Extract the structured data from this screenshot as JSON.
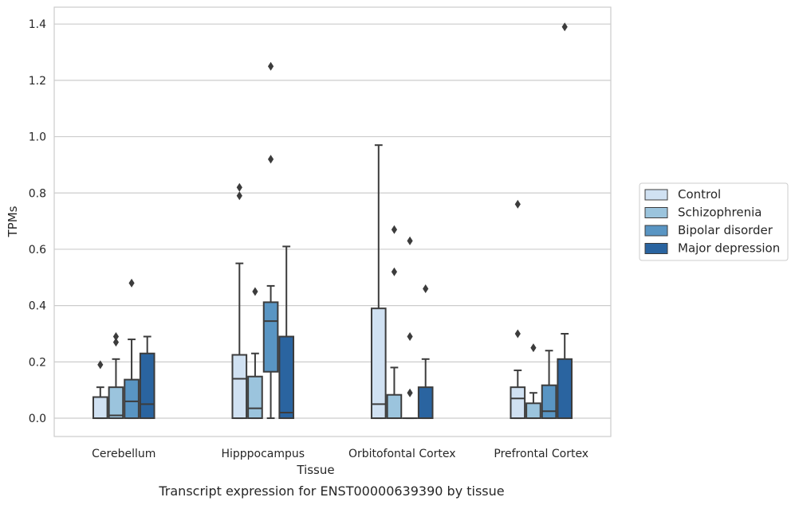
{
  "chart_data": {
    "type": "boxplot",
    "caption": "Transcript expression for ENST00000639390 by tissue",
    "xlabel": "Tissue",
    "ylabel": "TPMs",
    "ylim": [
      -0.065,
      1.46
    ],
    "yticks": [
      0.0,
      0.2,
      0.4,
      0.6,
      0.8,
      1.0,
      1.2,
      1.4
    ],
    "ytick_labels": [
      "0.0",
      "0.2",
      "0.4",
      "0.6",
      "0.8",
      "1.0",
      "1.2",
      "1.4"
    ],
    "grid": "horizontal",
    "legend_position": "right",
    "categories": [
      "Cerebellum",
      "Hipppocampus",
      "Orbitofontal Cortex",
      "Prefrontal Cortex"
    ],
    "series": [
      {
        "name": "Control",
        "color": "#d0e1f2",
        "boxes": [
          {
            "whisker_low": 0.0,
            "q1": 0.0,
            "median": 0.0,
            "q3": 0.075,
            "whisker_high": 0.11,
            "outliers": [
              0.19
            ]
          },
          {
            "whisker_low": 0.0,
            "q1": 0.0,
            "median": 0.14,
            "q3": 0.225,
            "whisker_high": 0.55,
            "outliers": [
              0.79,
              0.82
            ]
          },
          {
            "whisker_low": 0.0,
            "q1": 0.0,
            "median": 0.05,
            "q3": 0.39,
            "whisker_high": 0.97,
            "outliers": []
          },
          {
            "whisker_low": 0.0,
            "q1": 0.0,
            "median": 0.07,
            "q3": 0.11,
            "whisker_high": 0.17,
            "outliers": [
              0.3,
              0.76
            ]
          }
        ]
      },
      {
        "name": "Schizophrenia",
        "color": "#9bc4dd",
        "boxes": [
          {
            "whisker_low": 0.0,
            "q1": 0.0,
            "median": 0.01,
            "q3": 0.11,
            "whisker_high": 0.21,
            "outliers": [
              0.27,
              0.29
            ]
          },
          {
            "whisker_low": 0.0,
            "q1": 0.0,
            "median": 0.035,
            "q3": 0.148,
            "whisker_high": 0.23,
            "outliers": [
              0.45
            ]
          },
          {
            "whisker_low": 0.0,
            "q1": 0.0,
            "median": 0.0,
            "q3": 0.083,
            "whisker_high": 0.18,
            "outliers": [
              0.52,
              0.67
            ]
          },
          {
            "whisker_low": 0.0,
            "q1": 0.0,
            "median": 0.0,
            "q3": 0.053,
            "whisker_high": 0.09,
            "outliers": [
              0.25
            ]
          }
        ]
      },
      {
        "name": "Bipolar disorder",
        "color": "#5995c3",
        "boxes": [
          {
            "whisker_low": 0.0,
            "q1": 0.0,
            "median": 0.06,
            "q3": 0.137,
            "whisker_high": 0.28,
            "outliers": [
              0.48
            ]
          },
          {
            "whisker_low": 0.0,
            "q1": 0.165,
            "median": 0.345,
            "q3": 0.412,
            "whisker_high": 0.47,
            "outliers": [
              0.92,
              1.25
            ]
          },
          {
            "whisker_low": 0.0,
            "q1": 0.0,
            "median": 0.0,
            "q3": 0.0,
            "whisker_high": 0.0,
            "outliers": [
              0.09,
              0.29,
              0.63
            ]
          },
          {
            "whisker_low": 0.0,
            "q1": 0.0,
            "median": 0.025,
            "q3": 0.117,
            "whisker_high": 0.24,
            "outliers": []
          }
        ]
      },
      {
        "name": "Major depression",
        "color": "#2a64a0",
        "boxes": [
          {
            "whisker_low": 0.0,
            "q1": 0.0,
            "median": 0.05,
            "q3": 0.23,
            "whisker_high": 0.29,
            "outliers": []
          },
          {
            "whisker_low": 0.0,
            "q1": 0.0,
            "median": 0.02,
            "q3": 0.29,
            "whisker_high": 0.61,
            "outliers": []
          },
          {
            "whisker_low": 0.0,
            "q1": 0.0,
            "median": 0.0,
            "q3": 0.11,
            "whisker_high": 0.21,
            "outliers": [
              0.46
            ]
          },
          {
            "whisker_low": 0.0,
            "q1": 0.0,
            "median": 0.0,
            "q3": 0.21,
            "whisker_high": 0.3,
            "outliers": [
              1.39
            ]
          }
        ]
      }
    ]
  }
}
